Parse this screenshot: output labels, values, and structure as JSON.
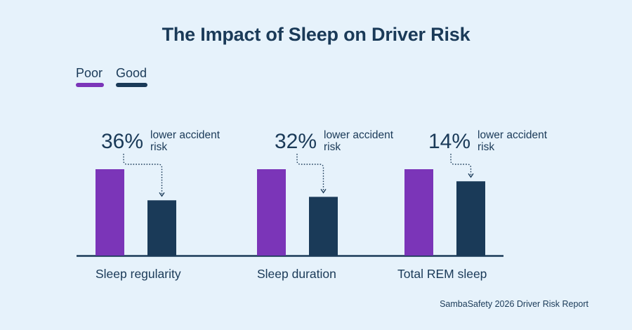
{
  "colors": {
    "poor": "#7b35b8",
    "good": "#1a3a58",
    "background": "#e6f2fb",
    "text": "#1a3a58"
  },
  "source": "SambaSafety 2026 Driver Risk Report",
  "chart_data": {
    "type": "bar",
    "title": "The Impact of Sleep on Driver Risk",
    "legend_position": "top-left",
    "grid": false,
    "categories": [
      "Sleep regularity",
      "Sleep duration",
      "Total REM sleep"
    ],
    "series": [
      {
        "name": "Poor",
        "values": [
          100,
          100,
          100
        ]
      },
      {
        "name": "Good",
        "values": [
          64,
          68,
          86
        ]
      }
    ],
    "ylim": [
      0,
      100
    ],
    "annotations": [
      {
        "value": "36%",
        "text_line1": "lower accident",
        "text_line2": "risk"
      },
      {
        "value": "32%",
        "text_line1": "lower accident",
        "text_line2": "risk"
      },
      {
        "value": "14%",
        "text_line1": "lower accident",
        "text_line2": "risk"
      }
    ]
  }
}
